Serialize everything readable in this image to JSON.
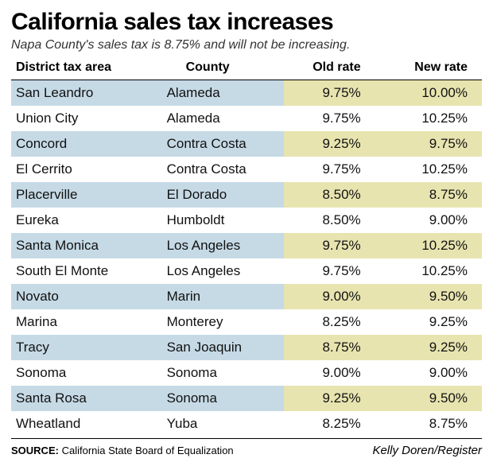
{
  "title": "California sales tax increases",
  "title_fontsize": 30,
  "subtitle": "Napa County's sales tax is 8.75% and will not be increasing.",
  "subtitle_fontsize": 16,
  "table": {
    "header_fontsize": 16,
    "body_fontsize": 17,
    "columns": [
      "District tax area",
      "County",
      "Old rate",
      "New rate"
    ],
    "column_align": [
      "left",
      "left",
      "right",
      "right"
    ],
    "row_stripe_color": "#c6dae6",
    "row_base_color": "#ffffff",
    "rate_highlight_color": "#e8e4b0",
    "border_color": "#000000",
    "rows": [
      {
        "district": "San Leandro",
        "county": "Alameda",
        "old": "9.75%",
        "new": "10.00%"
      },
      {
        "district": "Union City",
        "county": "Alameda",
        "old": "9.75%",
        "new": "10.25%"
      },
      {
        "district": "Concord",
        "county": "Contra Costa",
        "old": "9.25%",
        "new": "9.75%"
      },
      {
        "district": "El Cerrito",
        "county": "Contra Costa",
        "old": "9.75%",
        "new": "10.25%"
      },
      {
        "district": "Placerville",
        "county": "El Dorado",
        "old": "8.50%",
        "new": "8.75%"
      },
      {
        "district": "Eureka",
        "county": "Humboldt",
        "old": "8.50%",
        "new": "9.00%"
      },
      {
        "district": "Santa Monica",
        "county": "Los Angeles",
        "old": "9.75%",
        "new": "10.25%"
      },
      {
        "district": "South El Monte",
        "county": "Los Angeles",
        "old": "9.75%",
        "new": "10.25%"
      },
      {
        "district": "Novato",
        "county": "Marin",
        "old": "9.00%",
        "new": "9.50%"
      },
      {
        "district": "Marina",
        "county": "Monterey",
        "old": "8.25%",
        "new": "9.25%"
      },
      {
        "district": "Tracy",
        "county": "San Joaquin",
        "old": "8.75%",
        "new": "9.25%"
      },
      {
        "district": "Sonoma",
        "county": "Sonoma",
        "old": "9.00%",
        "new": "9.00%"
      },
      {
        "district": "Santa Rosa",
        "county": "Sonoma",
        "old": "9.25%",
        "new": "9.50%"
      },
      {
        "district": "Wheatland",
        "county": "Yuba",
        "old": "8.25%",
        "new": "8.75%"
      }
    ]
  },
  "source": {
    "label": "SOURCE:",
    "text": "California State Board of Equalization",
    "fontsize": 13
  },
  "credit": {
    "text": "Kelly Doren/Register",
    "fontsize": 15
  }
}
